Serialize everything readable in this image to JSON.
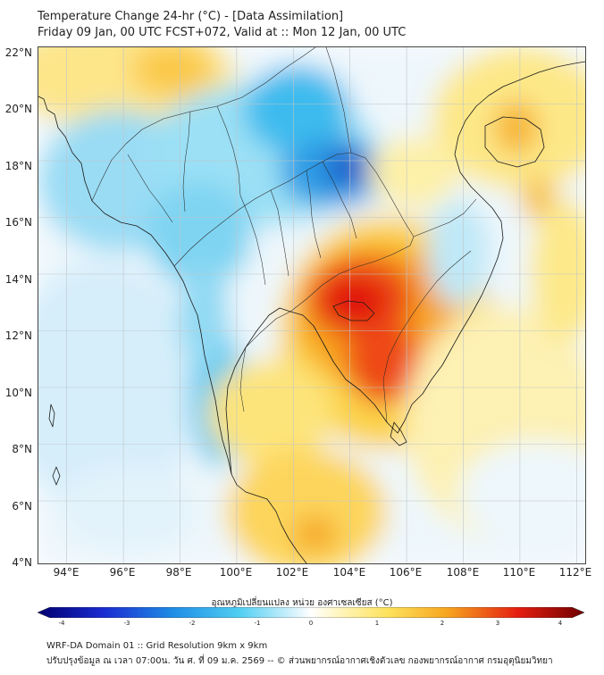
{
  "header": {
    "line1": "Temperature Change 24-hr (°C) - [Data Assimilation]",
    "line2": "Friday 09 Jan, 00 UTC FCST+072, Valid at :: Mon 12 Jan, 00 UTC"
  },
  "map": {
    "lat_labels": [
      "22°N",
      "20°N",
      "18°N",
      "16°N",
      "14°N",
      "12°N",
      "10°N",
      "8°N",
      "6°N",
      "4°N"
    ],
    "lon_labels": [
      "94°E",
      "96°E",
      "98°E",
      "100°E",
      "102°E",
      "104°E",
      "106°E",
      "108°E",
      "110°E",
      "112°E"
    ],
    "lat_range": [
      4,
      22.2
    ],
    "lon_range": [
      93.0,
      112.3
    ]
  },
  "colorbar": {
    "title": "อุณหภูมิเปลี่ยนแปลง หน่วย องศาเซลเซียส (°C)",
    "ticks": [
      "-4",
      "-3",
      "-2",
      "-1",
      "0",
      "1",
      "2",
      "3",
      "4"
    ]
  },
  "footer": {
    "line1": "WRF-DA Domain 01 :: Grid Resolution 9km x 9km",
    "line2": "ปรับปรุงข้อมูล ณ เวลา 07:00น. วัน ศ. ที่ 09 ม.ค. 2569 -- © ส่วนพยากรณ์อากาศเชิงตัวเลข กองพยากรณ์อากาศ กรมอุตุนิยมวิทยา"
  },
  "colors": {
    "cold_strong": "#1a1aa8",
    "cold": "#37c3ef",
    "neutral": "#f5fbff",
    "warm": "#fde36b",
    "hot": "#e81010"
  }
}
